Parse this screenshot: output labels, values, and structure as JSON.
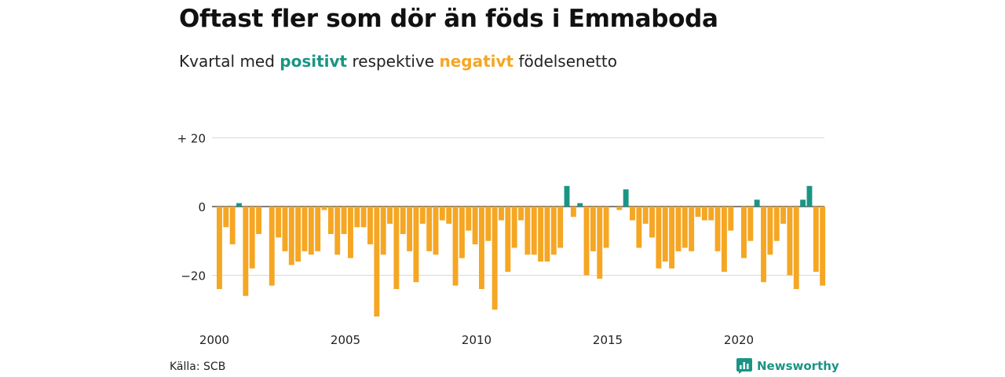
{
  "header": {
    "title": "Oftast fler som dör än föds i Emmaboda",
    "subtitle_pre": "Kvartal med ",
    "subtitle_pos": "positivt",
    "subtitle_mid": " respektive ",
    "subtitle_neg": "negativt",
    "subtitle_post": " födelsenetto"
  },
  "footer": {
    "source": "Källa: SCB",
    "brand": "Newsworthy",
    "brand_icon": "newsworthy-logo-icon"
  },
  "colors": {
    "positive": "#1a9584",
    "negative": "#f5a623",
    "grid": "#d9d9d9",
    "zero": "#333333"
  },
  "chart_data": {
    "type": "bar",
    "x_unit": "quarter",
    "start": "2000 Q1",
    "ylim": [
      -33,
      21
    ],
    "yticks": [
      20,
      0,
      -20
    ],
    "ytick_labels": [
      "+ 20",
      "0",
      "−20"
    ],
    "xticks": [
      2000,
      2005,
      2010,
      2015,
      2020
    ],
    "grid": true,
    "values": [
      -24,
      -6,
      -11,
      1,
      -26,
      -18,
      -8,
      0,
      -23,
      -9,
      -13,
      -17,
      -16,
      -13,
      -14,
      -13,
      -1,
      -8,
      -14,
      -8,
      -15,
      -6,
      -6,
      -11,
      -32,
      -14,
      -5,
      -24,
      -8,
      -13,
      -22,
      -5,
      -13,
      -14,
      -4,
      -5,
      -23,
      -15,
      -7,
      -11,
      -24,
      -10,
      -30,
      -4,
      -19,
      -12,
      -4,
      -14,
      -14,
      -16,
      -16,
      -14,
      -12,
      6,
      -3,
      1,
      -20,
      -13,
      -21,
      -12,
      0,
      -1,
      5,
      -4,
      -12,
      -5,
      -9,
      -18,
      -16,
      -18,
      -13,
      -12,
      -13,
      -3,
      -4,
      -4,
      -13,
      -19,
      -7,
      0,
      -15,
      -10,
      2,
      -22,
      -14,
      -10,
      -5,
      -20,
      -24,
      2,
      6,
      -19,
      -23
    ]
  }
}
